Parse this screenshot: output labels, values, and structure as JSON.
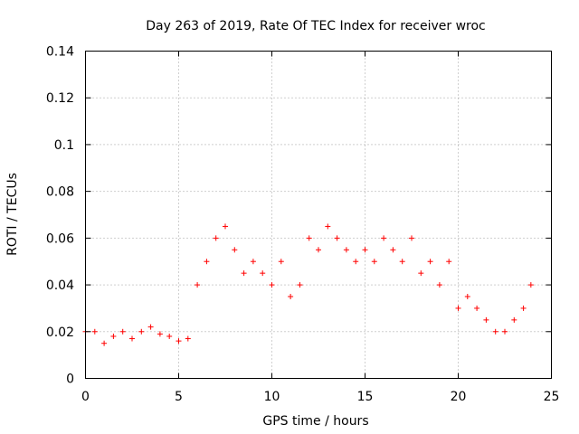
{
  "chart_data": {
    "type": "scatter",
    "title": "Day 263 of 2019, Rate Of TEC Index for receiver wroc",
    "xlabel": "GPS time / hours",
    "ylabel": "ROTI / TECUs",
    "xlim": [
      0,
      25
    ],
    "ylim": [
      0,
      0.14
    ],
    "xticks": [
      "0",
      "5",
      "10",
      "15",
      "20",
      "25"
    ],
    "yticks": [
      "0",
      "0.02",
      "0.04",
      "0.06",
      "0.08",
      "0.1",
      "0.12",
      "0.14"
    ],
    "grid": true,
    "marker": "+",
    "marker_color": "#ff0000",
    "series": [
      {
        "x": [
          0.0,
          0.5,
          1.0,
          1.5,
          2.0,
          2.5,
          3.0,
          3.5,
          4.0,
          4.5,
          5.0,
          5.5,
          6.0,
          6.5,
          7.0,
          7.5,
          8.0,
          8.5,
          9.0,
          9.5,
          10.0,
          10.5,
          11.0,
          11.5,
          12.0,
          12.5,
          13.0,
          13.5,
          14.0,
          14.5,
          15.0,
          15.5,
          16.0,
          16.5,
          17.0,
          17.5,
          18.0,
          18.5,
          19.0,
          19.5,
          20.0,
          20.5,
          21.0,
          21.5,
          22.0,
          22.5,
          23.0,
          23.5,
          23.9
        ],
        "y": [
          0.02,
          0.02,
          0.015,
          0.018,
          0.02,
          0.017,
          0.02,
          0.022,
          0.019,
          0.018,
          0.016,
          0.017,
          0.04,
          0.05,
          0.06,
          0.065,
          0.055,
          0.045,
          0.05,
          0.045,
          0.04,
          0.05,
          0.035,
          0.04,
          0.06,
          0.055,
          0.065,
          0.06,
          0.055,
          0.05,
          0.055,
          0.05,
          0.06,
          0.055,
          0.05,
          0.06,
          0.045,
          0.05,
          0.04,
          0.05,
          0.03,
          0.035,
          0.03,
          0.025,
          0.02,
          0.02,
          0.025,
          0.03,
          0.04
        ]
      }
    ]
  }
}
